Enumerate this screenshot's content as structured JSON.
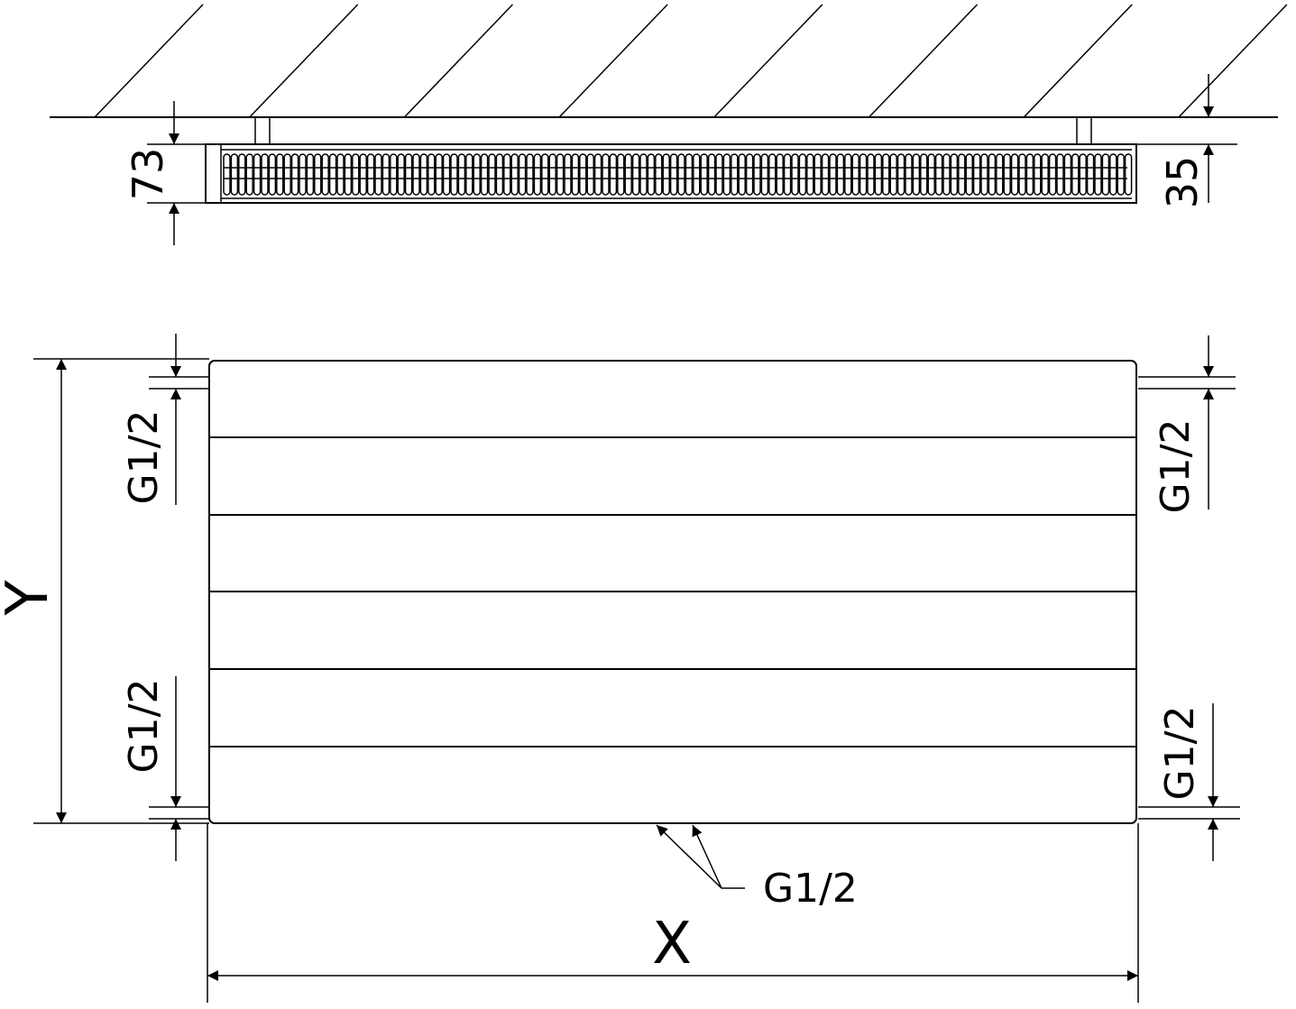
{
  "top_view": {
    "depth_label": "73",
    "wall_distance_label": "35"
  },
  "front_view": {
    "height_label": "Y",
    "width_label": "X",
    "connections": {
      "left_top": "G1/2",
      "left_bottom": "G1/2",
      "right_top": "G1/2",
      "right_bottom": "G1/2",
      "bottom": "G1/2"
    }
  },
  "colors": {
    "line": "#000000",
    "background": "#ffffff"
  }
}
